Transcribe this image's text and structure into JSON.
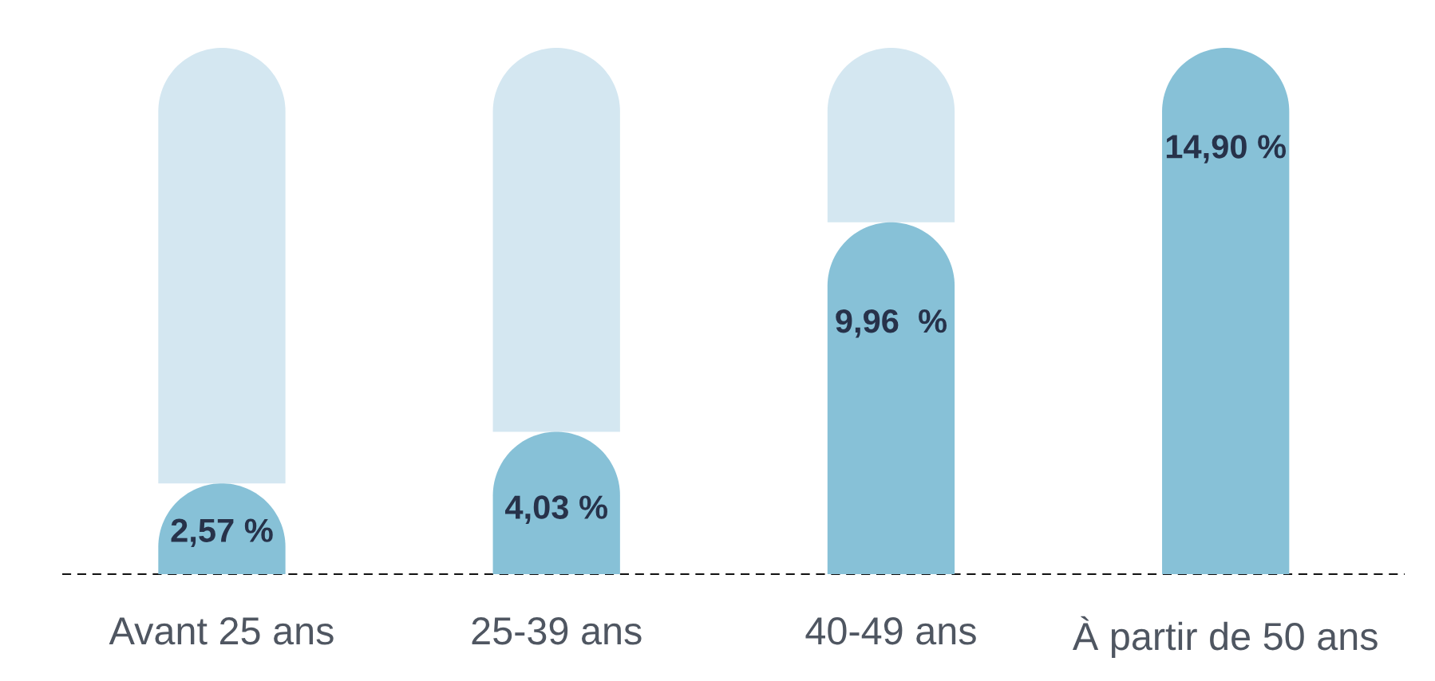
{
  "chart_data": {
    "type": "bar",
    "categories": [
      "Avant 25 ans",
      "25-39 ans",
      "40-49 ans",
      "À partir de 50 ans"
    ],
    "stacked": true,
    "series": [
      {
        "color": "#87c1d7",
        "values": [
          2.57,
          4.03,
          9.96,
          14.9
        ],
        "value_labels": [
          "2,57 %",
          "4,03 %",
          "9,96  %",
          "14,90 %"
        ]
      },
      {
        "color": "#d4e7f1",
        "values": [
          12.33,
          10.87,
          4.94,
          0
        ]
      }
    ],
    "ref_lines": [
      {
        "axis": "y",
        "value": 0,
        "line_style": "dashed",
        "color": "#111111"
      }
    ]
  }
}
